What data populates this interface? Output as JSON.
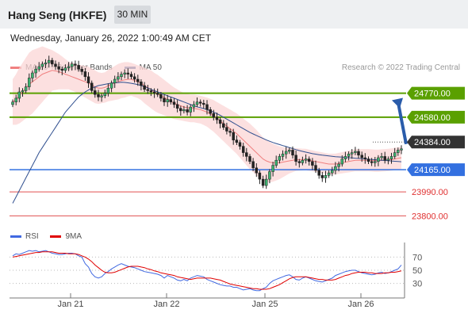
{
  "header": {
    "title": "Hang Seng (HKFE)",
    "interval": "30 MIN"
  },
  "datetime": "Wednesday, January 26, 2022 1:00:49 AM CET",
  "legend": [
    {
      "label": "MA 20 + Bollinger Bands",
      "color": "#f08080"
    },
    {
      "label": "MA 50",
      "color": "#2f4f8f"
    }
  ],
  "credit": "Research © 2022 Trading Central",
  "rsi_legend": [
    {
      "label": "RSI",
      "color": "#4169e1"
    },
    {
      "label": "9MA",
      "color": "#e00000"
    }
  ],
  "chart_data": [
    {
      "type": "candlestick",
      "ylim": [
        23740,
        24880
      ],
      "x_dates": [
        "Jan 21",
        "Jan 22",
        "Jan 25",
        "Jan 26"
      ],
      "levels": [
        {
          "label": "24770.00",
          "value": 24770,
          "color": "#5aa000",
          "style": "solid"
        },
        {
          "label": "24580.00",
          "value": 24580,
          "color": "#5aa000",
          "style": "solid"
        },
        {
          "label": "24384.00",
          "value": 24384,
          "color": "#222222",
          "style": "dotted"
        },
        {
          "label": "24165.00",
          "value": 24165,
          "color": "#3370e0",
          "style": "solid"
        },
        {
          "label": "23990.00",
          "value": 23990,
          "color": "#e05050",
          "style": "thin"
        },
        {
          "label": "23800.00",
          "value": 23800,
          "color": "#e05050",
          "style": "thin"
        }
      ],
      "price_close": [
        24700,
        24730,
        24780,
        24790,
        24820,
        24890,
        24930,
        24960,
        24980,
        25000,
        25010,
        25030,
        25000,
        24980,
        24960,
        24950,
        24970,
        24980,
        25000,
        24990,
        24960,
        24940,
        24900,
        24850,
        24790,
        24760,
        24740,
        24750,
        24770,
        24810,
        24850,
        24880,
        24900,
        24920,
        24930,
        24920,
        24900,
        24880,
        24860,
        24830,
        24800,
        24790,
        24780,
        24770,
        24760,
        24730,
        24700,
        24720,
        24700,
        24680,
        24650,
        24630,
        24640,
        24620,
        24660,
        24680,
        24700,
        24690,
        24680,
        24640,
        24610,
        24580,
        24560,
        24530,
        24500,
        24470,
        24460,
        24400,
        24380,
        24350,
        24300,
        24270,
        24230,
        24180,
        24140,
        24090,
        24040,
        24090,
        24150,
        24200,
        24240,
        24270,
        24290,
        24310,
        24320,
        24280,
        24230,
        24220,
        24240,
        24250,
        24230,
        24200,
        24160,
        24120,
        24100,
        24120,
        24140,
        24160,
        24190,
        24210,
        24250,
        24270,
        24290,
        24300,
        24310,
        24280,
        24260,
        24250,
        24230,
        24220,
        24230,
        24260,
        24270,
        24240,
        24250,
        24270,
        24300,
        24320,
        24330
      ],
      "ma20": [
        24700,
        24720,
        24750,
        24780,
        24810,
        24840,
        24860,
        24880,
        24900,
        24920,
        24930,
        24940,
        24950,
        24945,
        24940,
        24930,
        24920,
        24910,
        24900,
        24890,
        24880,
        24870,
        24860,
        24850,
        24835,
        24820,
        24810,
        24810,
        24815,
        24830,
        24840,
        24850,
        24860,
        24870,
        24875,
        24880,
        24880,
        24870,
        24860,
        24850,
        24830,
        24815,
        24800,
        24780,
        24765,
        24750,
        24735,
        24720,
        24705,
        24690,
        24680,
        24670,
        24660,
        24655,
        24650,
        24650,
        24645,
        24640,
        24630,
        24620,
        24605,
        24590,
        24570,
        24550,
        24530,
        24510,
        24490,
        24470,
        24450,
        24425,
        24400,
        24375,
        24350,
        24325,
        24300,
        24275,
        24250,
        24235,
        24225,
        24220,
        24220,
        24220,
        24225,
        24230,
        24235,
        24240,
        24245,
        24245,
        24245,
        24245,
        24240,
        24235,
        24230,
        24225,
        24220,
        24215,
        24210,
        24210,
        24210,
        24215,
        24220,
        24225,
        24230,
        24235,
        24240,
        24240,
        24240,
        24240,
        24240,
        24238,
        24236,
        24236,
        24238,
        24240,
        24242,
        24245,
        24250,
        24255,
        24260
      ],
      "bb_width": [
        180,
        200,
        220,
        230,
        240,
        250,
        250,
        240,
        230,
        220,
        200,
        180,
        160,
        150,
        140,
        130,
        120,
        110,
        110,
        110,
        115,
        120,
        125,
        130,
        130,
        130,
        125,
        120,
        120,
        125,
        130,
        135,
        140,
        140,
        140,
        135,
        130,
        130,
        130,
        135,
        140,
        145,
        150,
        150,
        150,
        145,
        140,
        135,
        130,
        125,
        120,
        115,
        110,
        110,
        110,
        110,
        110,
        110,
        112,
        115,
        120,
        125,
        130,
        135,
        140,
        145,
        150,
        155,
        160,
        165,
        170,
        175,
        180,
        180,
        180,
        175,
        170,
        165,
        160,
        150,
        140,
        130,
        120,
        110,
        100,
        95,
        90,
        88,
        86,
        85,
        84,
        83,
        82,
        82,
        82,
        82,
        82,
        82,
        82,
        83,
        84,
        85,
        86,
        87,
        88,
        88,
        88,
        88,
        88,
        88,
        88,
        88,
        88,
        88,
        88,
        88,
        88,
        88,
        88
      ],
      "ma50": [
        23900,
        23950,
        24000,
        24050,
        24100,
        24150,
        24200,
        24250,
        24300,
        24340,
        24380,
        24420,
        24460,
        24500,
        24540,
        24580,
        24620,
        24650,
        24680,
        24710,
        24740,
        24760,
        24780,
        24795,
        24810,
        24820,
        24830,
        24835,
        24840,
        24845,
        24850,
        24852,
        24854,
        24856,
        24855,
        24852,
        24848,
        24843,
        24838,
        24830,
        24822,
        24812,
        24800,
        24790,
        24780,
        24770,
        24760,
        24750,
        24740,
        24730,
        24720,
        24710,
        24700,
        24690,
        24680,
        24670,
        24662,
        24655,
        24648,
        24640,
        24630,
        24620,
        24608,
        24595,
        24580,
        24565,
        24550,
        24535,
        24520,
        24505,
        24490,
        24475,
        24460,
        24448,
        24436,
        24424,
        24412,
        24400,
        24390,
        24380,
        24372,
        24364,
        24356,
        24348,
        24340,
        24332,
        24324,
        24316,
        24310,
        24304,
        24298,
        24292,
        24288,
        24284,
        24280,
        24277,
        24274,
        24271,
        24268,
        24266,
        24264,
        24262,
        24260,
        24258,
        24256,
        24254,
        24252,
        24250,
        24248,
        24246,
        24244,
        24242,
        24240,
        24238,
        24236,
        24234,
        24232,
        24230,
        24228
      ],
      "rsi_ticks": [
        70,
        50,
        30
      ],
      "rsi_ylim": [
        15,
        85
      ],
      "rsi": [
        72,
        75,
        74,
        76,
        78,
        80,
        79,
        80,
        78,
        79,
        80,
        78,
        76,
        75,
        74,
        74,
        75,
        76,
        76,
        75,
        72,
        70,
        60,
        55,
        45,
        40,
        38,
        40,
        45,
        48,
        52,
        55,
        58,
        60,
        58,
        56,
        55,
        54,
        52,
        50,
        48,
        47,
        46,
        45,
        44,
        42,
        38,
        42,
        40,
        38,
        35,
        34,
        36,
        34,
        38,
        40,
        42,
        41,
        40,
        36,
        34,
        32,
        30,
        28,
        27,
        26,
        26,
        24,
        24,
        22,
        20,
        21,
        22,
        20,
        19,
        19,
        22,
        24,
        30,
        34,
        36,
        38,
        40,
        42,
        43,
        40,
        36,
        35,
        38,
        40,
        38,
        36,
        34,
        33,
        32,
        34,
        36,
        38,
        42,
        44,
        46,
        48,
        49,
        50,
        50,
        48,
        46,
        45,
        44,
        43,
        44,
        46,
        47,
        45,
        46,
        48,
        50,
        52,
        58
      ],
      "rsi_ma": [
        70,
        71,
        72,
        73,
        74,
        75,
        76,
        77,
        77,
        78,
        78,
        78,
        78,
        77,
        76,
        76,
        76,
        75,
        75,
        75,
        74,
        72,
        70,
        67,
        63,
        58,
        54,
        50,
        47,
        46,
        46,
        47,
        49,
        51,
        53,
        55,
        56,
        56,
        56,
        55,
        54,
        52,
        51,
        49,
        48,
        46,
        45,
        44,
        43,
        42,
        40,
        39,
        38,
        37,
        36,
        37,
        38,
        38,
        38,
        38,
        38,
        37,
        36,
        35,
        33,
        31,
        29,
        28,
        27,
        26,
        25,
        24,
        23,
        22,
        22,
        21,
        21,
        21,
        22,
        24,
        26,
        28,
        31,
        34,
        37,
        39,
        40,
        40,
        40,
        40,
        39,
        38,
        37,
        36,
        36,
        35,
        35,
        35,
        36,
        38,
        40,
        42,
        43,
        45,
        46,
        47,
        47,
        47,
        46,
        46,
        45,
        45,
        45,
        46,
        46,
        47,
        47,
        48,
        49
      ]
    }
  ]
}
